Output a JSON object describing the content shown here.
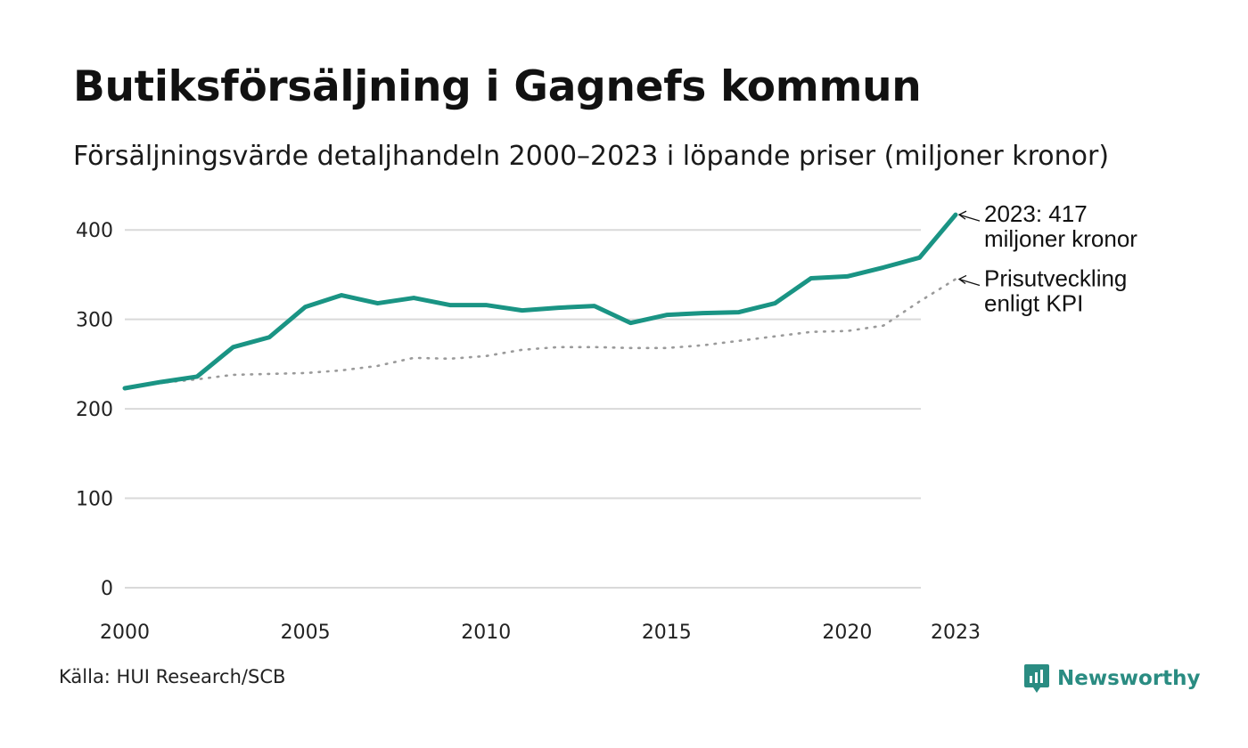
{
  "header": {
    "title": "Butiksförsäljning i Gagnefs kommun",
    "subtitle": "Försäljningsvärde detaljhandeln 2000–2023 i löpande priser (miljoner kronor)"
  },
  "footer": {
    "source": "Källa: HUI Research/SCB",
    "brand": "Newsworthy"
  },
  "colors": {
    "sales": "#1a9484",
    "kpi": "#9a9a9a",
    "grid": "#d9d9d9",
    "brand": "#2a8c82"
  },
  "chart_data": {
    "type": "line",
    "title": "Butiksförsäljning i Gagnefs kommun",
    "subtitle": "Försäljningsvärde detaljhandeln 2000–2023 i löpande priser (miljoner kronor)",
    "x": [
      2000,
      2001,
      2002,
      2003,
      2004,
      2005,
      2006,
      2007,
      2008,
      2009,
      2010,
      2011,
      2012,
      2013,
      2014,
      2015,
      2016,
      2017,
      2018,
      2019,
      2020,
      2021,
      2022,
      2023
    ],
    "x_ticks": [
      2000,
      2005,
      2010,
      2015,
      2020,
      2023
    ],
    "x_tick_labels": [
      "2000",
      "2005",
      "2010",
      "2015",
      "2020",
      "2023"
    ],
    "y_ticks": [
      0,
      100,
      200,
      300,
      400
    ],
    "y_tick_labels": [
      "0",
      "100",
      "200",
      "300",
      "400"
    ],
    "ylim": [
      0,
      417
    ],
    "xlim": [
      2000,
      2023
    ],
    "grid": true,
    "series": [
      {
        "name": "Försäljningsvärde",
        "style": "solid",
        "values": [
          223,
          230,
          236,
          269,
          280,
          314,
          327,
          318,
          324,
          316,
          316,
          310,
          313,
          315,
          296,
          305,
          307,
          308,
          318,
          346,
          348,
          358,
          369,
          417
        ]
      },
      {
        "name": "Prisutveckling enligt KPI",
        "style": "dotted",
        "values": [
          223,
          229,
          233,
          238,
          239,
          240,
          243,
          248,
          257,
          256,
          259,
          266,
          269,
          269,
          268,
          268,
          271,
          276,
          281,
          286,
          287,
          293,
          320,
          345
        ]
      }
    ],
    "annotations": [
      {
        "series": "Försäljningsvärde",
        "lines": [
          "2023: 417",
          "miljoner kronor"
        ]
      },
      {
        "series": "Prisutveckling enligt KPI",
        "lines": [
          "Prisutveckling",
          "enligt KPI"
        ]
      }
    ]
  }
}
